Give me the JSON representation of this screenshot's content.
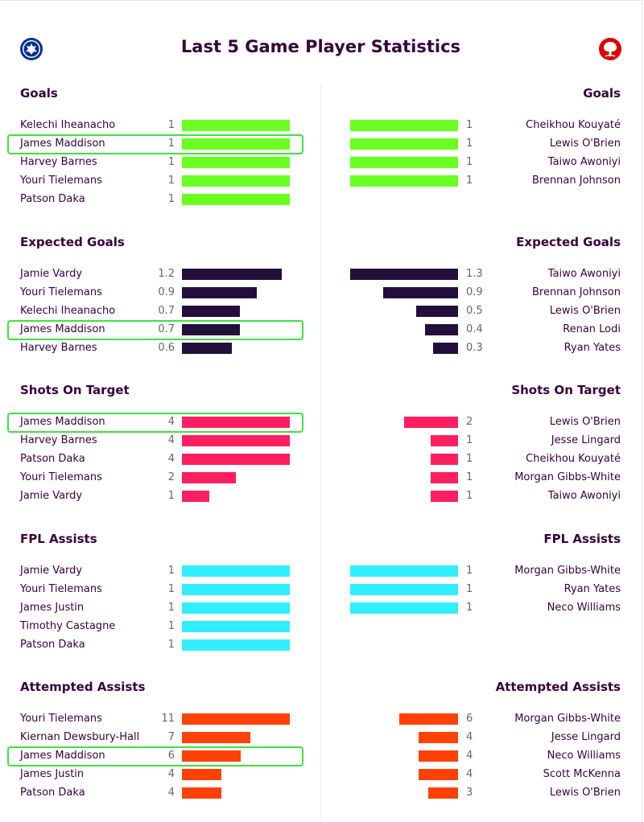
{
  "title": "Last 5 Game Player Statistics",
  "teams": {
    "home": {
      "badge_icon": "leicester-fox-badge-icon",
      "color": "#003090"
    },
    "away": {
      "badge_icon": "nottingham-tree-badge-icon",
      "color": "#dd0000"
    }
  },
  "highlight_color": "#3ee23e",
  "chart_data": [
    {
      "type": "bar",
      "title": "Goals",
      "color": "#6aff22",
      "home": {
        "players": [
          "Kelechi Iheanacho",
          "James Maddison",
          "Harvey Barnes",
          "Youri Tielemans",
          "Patson Daka"
        ],
        "values": [
          "1",
          "1",
          "1",
          "1",
          "1"
        ],
        "highlight": [
          1
        ]
      },
      "away": {
        "players": [
          "Cheikhou Kouyaté",
          "Lewis O'Brien",
          "Taiwo Awoniyi",
          "Brennan Johnson"
        ],
        "values": [
          "1",
          "1",
          "1",
          "1"
        ],
        "highlight": []
      }
    },
    {
      "type": "bar",
      "title": "Expected Goals",
      "color": "#230f3c",
      "home": {
        "players": [
          "Jamie Vardy",
          "Youri Tielemans",
          "Kelechi Iheanacho",
          "James Maddison",
          "Harvey Barnes"
        ],
        "values": [
          "1.2",
          "0.9",
          "0.7",
          "0.7",
          "0.6"
        ],
        "highlight": [
          3
        ]
      },
      "away": {
        "players": [
          "Taiwo Awoniyi",
          "Brennan Johnson",
          "Lewis O'Brien",
          "Renan Lodi",
          "Ryan Yates"
        ],
        "values": [
          "1.3",
          "0.9",
          "0.5",
          "0.4",
          "0.3"
        ],
        "highlight": []
      }
    },
    {
      "type": "bar",
      "title": "Shots On Target",
      "color": "#ff1f61",
      "home": {
        "players": [
          "James Maddison",
          "Harvey Barnes",
          "Patson Daka",
          "Youri Tielemans",
          "Jamie Vardy"
        ],
        "values": [
          "4",
          "4",
          "4",
          "2",
          "1"
        ],
        "highlight": [
          0
        ]
      },
      "away": {
        "players": [
          "Lewis O'Brien",
          "Jesse Lingard",
          "Cheikhou Kouyaté",
          "Morgan Gibbs-White",
          "Taiwo Awoniyi"
        ],
        "values": [
          "2",
          "1",
          "1",
          "1",
          "1"
        ],
        "highlight": []
      }
    },
    {
      "type": "bar",
      "title": "FPL Assists",
      "color": "#30eeff",
      "home": {
        "players": [
          "Jamie Vardy",
          "Youri Tielemans",
          "James Justin",
          "Timothy Castagne",
          "Patson Daka"
        ],
        "values": [
          "1",
          "1",
          "1",
          "1",
          "1"
        ],
        "highlight": []
      },
      "away": {
        "players": [
          "Morgan Gibbs-White",
          "Ryan Yates",
          "Neco Williams"
        ],
        "values": [
          "1",
          "1",
          "1"
        ],
        "highlight": []
      }
    },
    {
      "type": "bar",
      "title": "Attempted Assists",
      "color": "#ff4108",
      "home": {
        "players": [
          "Youri Tielemans",
          "Kiernan Dewsbury-Hall",
          "James Maddison",
          "James Justin",
          "Patson Daka"
        ],
        "values": [
          "11",
          "7",
          "6",
          "4",
          "4"
        ],
        "highlight": [
          2
        ]
      },
      "away": {
        "players": [
          "Morgan Gibbs-White",
          "Jesse Lingard",
          "Neco Williams",
          "Scott McKenna",
          "Lewis O'Brien"
        ],
        "values": [
          "6",
          "4",
          "4",
          "4",
          "3"
        ],
        "highlight": []
      }
    }
  ]
}
